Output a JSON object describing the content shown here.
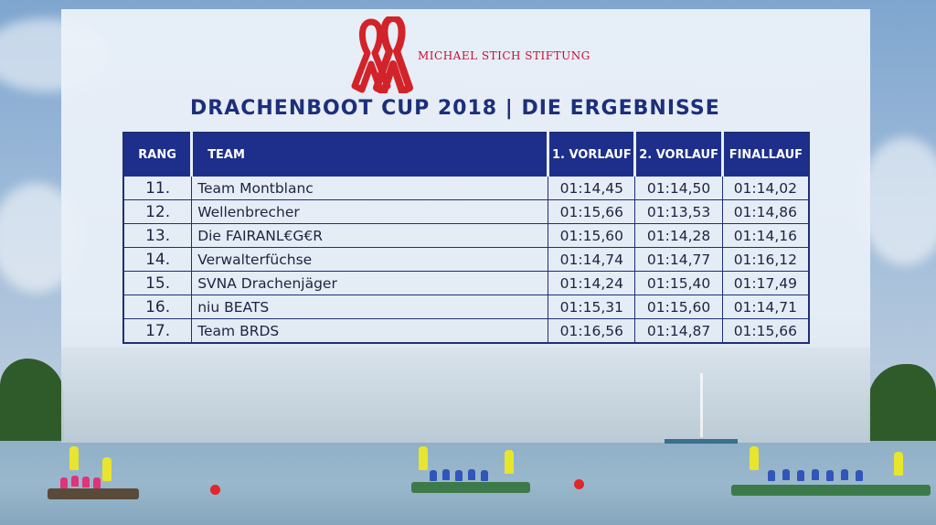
{
  "header": {
    "foundation_name": "MICHAEL STICH STIFTUNG",
    "title": "DRACHENBOOT CUP 2018  |  DIE ERGEBNISSE"
  },
  "colors": {
    "accent": "#1d2f8a",
    "brand_red": "#c8102e"
  },
  "icons": {
    "logo": "red-ribbon-icon"
  },
  "table": {
    "columns": [
      "RANG",
      "TEAM",
      "1. VORLAUF",
      "2. VORLAUF",
      "FINALLAUF"
    ],
    "rows": [
      {
        "rang": "11.",
        "team": "Team Montblanc",
        "vorlauf1": "01:14,45",
        "vorlauf2": "01:14,50",
        "finallauf": "01:14,02"
      },
      {
        "rang": "12.",
        "team": "Wellenbrecher",
        "vorlauf1": "01:15,66",
        "vorlauf2": "01:13,53",
        "finallauf": "01:14,86"
      },
      {
        "rang": "13.",
        "team": "Die FAIRANL€G€R",
        "vorlauf1": "01:15,60",
        "vorlauf2": "01:14,28",
        "finallauf": "01:14,16"
      },
      {
        "rang": "14.",
        "team": "Verwalterfüchse",
        "vorlauf1": "01:14,74",
        "vorlauf2": "01:14,77",
        "finallauf": "01:16,12"
      },
      {
        "rang": "15.",
        "team": "SVNA Drachenjäger",
        "vorlauf1": "01:14,24",
        "vorlauf2": "01:15,40",
        "finallauf": "01:17,49"
      },
      {
        "rang": "16.",
        "team": "niu BEATS",
        "vorlauf1": "01:15,31",
        "vorlauf2": "01:15,60",
        "finallauf": "01:14,71"
      },
      {
        "rang": "17.",
        "team": "Team BRDS",
        "vorlauf1": "01:16,56",
        "vorlauf2": "01:14,87",
        "finallauf": "01:15,66"
      }
    ]
  }
}
